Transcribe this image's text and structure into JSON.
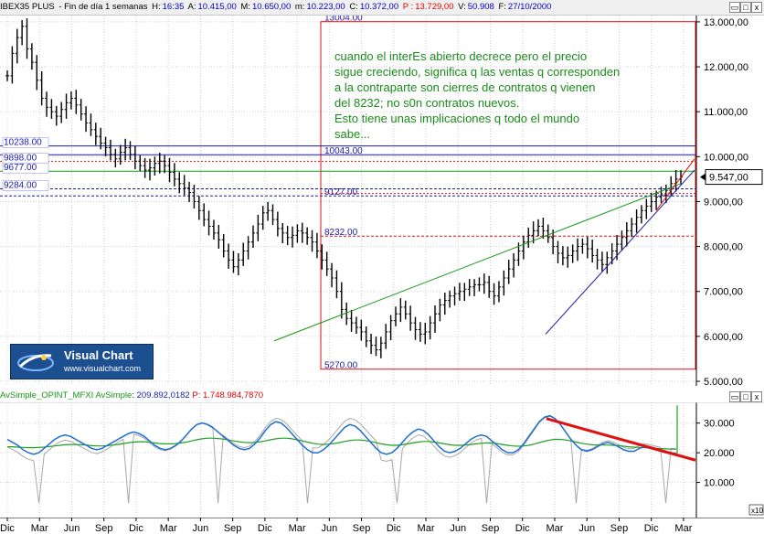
{
  "header": {
    "symbol": "IBEX35 PLUS",
    "desc": "- Fin de día 1 semanas",
    "H_label": "H:",
    "H_value": "16:35",
    "A_label": "A:",
    "A_value": "10.415,00",
    "M_label": "M:",
    "M_value": "10.650,00",
    "m_label": "m:",
    "m_value": "10.223,00",
    "C_label": "C:",
    "C_value": "10.372,00",
    "P_label": "P :",
    "P_value": "13.729,00",
    "V_label": "V:",
    "V_value": "50.908",
    "F_label": "F:",
    "F_value": "27/10/2000"
  },
  "window_buttons": {
    "close": "x",
    "maximize": "□",
    "restore": "▭"
  },
  "logo": {
    "title": "Visual Chart",
    "url": "www.visualchart.com"
  },
  "annotation": {
    "lines": [
      "cuando el interEs abierto decrece pero el precio",
      "sigue creciendo, significa q las ventas q corresponden",
      "a la contraparte son cierres de contratos q vienen",
      "del 8232; no s0n contratos nuevos.",
      "Esto tiene unas implicaciones q todo el mundo",
      "sabe..."
    ]
  },
  "colors": {
    "price_bars": "#000000",
    "red_lines": "#dd1111",
    "blue_lines": "#1a1aaa",
    "green_lines": "#169916",
    "annotation_text": "#1a8c1a",
    "indicator_fast": "#1e6fd0",
    "indicator_slow": "#1f9f1f",
    "indicator_raw": "#a8a8a8",
    "indicator_trend": "#e01010"
  },
  "chart_data": [
    {
      "type": "bar",
      "subtype": "ohlc",
      "x_ticks": [
        "Dic",
        "Mar",
        "Jun",
        "Sep",
        "Dic",
        "Mar",
        "Jun",
        "Sep",
        "Dic",
        "Mar",
        "Jun",
        "Sep",
        "Dic",
        "Mar",
        "Jun",
        "Sep",
        "Dic",
        "Mar",
        "Jun",
        "Sep",
        "Dic",
        "Mar"
      ],
      "y_ticks": [
        "5.000,00",
        "6.000,00",
        "7.000,00",
        "8.000,00",
        "9.000,00",
        "10.000,00",
        "11.000,00",
        "12.000,00",
        "13.000,00"
      ],
      "ylim": [
        5000,
        13100
      ],
      "last_price_label": "9.547,00",
      "close_series": [
        11800,
        12300,
        12650,
        12900,
        12400,
        12100,
        11700,
        11300,
        11100,
        11000,
        10900,
        11050,
        11200,
        11300,
        11150,
        10950,
        10750,
        10600,
        10450,
        10300,
        10200,
        10050,
        9950,
        10100,
        10200,
        10050,
        9900,
        9800,
        9700,
        9750,
        9850,
        9900,
        9800,
        9650,
        9500,
        9400,
        9300,
        9200,
        9000,
        8800,
        8600,
        8450,
        8300,
        8150,
        7900,
        7700,
        7550,
        7700,
        7900,
        8100,
        8300,
        8500,
        8750,
        8800,
        8600,
        8400,
        8300,
        8200,
        8250,
        8350,
        8300,
        8200,
        8100,
        7900,
        7700,
        7500,
        7300,
        7000,
        6600,
        6400,
        6300,
        6200,
        6100,
        5900,
        5800,
        5700,
        5850,
        6100,
        6350,
        6500,
        6650,
        6500,
        6300,
        6150,
        6050,
        6100,
        6300,
        6500,
        6700,
        6800,
        6900,
        6950,
        7000,
        7050,
        7100,
        7150,
        7150,
        7200,
        7000,
        6900,
        7100,
        7300,
        7500,
        7700,
        7900,
        8100,
        8250,
        8350,
        8450,
        8350,
        8200,
        8000,
        7850,
        7750,
        7800,
        7900,
        8000,
        8050,
        7950,
        7800,
        7700,
        7600,
        7750,
        7900,
        8050,
        8200,
        8350,
        8500,
        8650,
        8800,
        8900,
        9000,
        9100,
        9150,
        9250,
        9400,
        9500,
        9547
      ],
      "horizontal_levels": [
        {
          "value": 13004,
          "label": "13004.00"
        },
        {
          "value": 10238,
          "label": "10238.00"
        },
        {
          "value": 10043,
          "label": "10043.00"
        },
        {
          "value": 9898,
          "label": "9898.00"
        },
        {
          "value": 9677,
          "label": "9677.00"
        },
        {
          "value": 9284,
          "label": "9284.00"
        },
        {
          "value": 9127,
          "label": "9127.00"
        },
        {
          "value": 8232,
          "label": "8232.00"
        },
        {
          "value": 5270,
          "label": "5270.00"
        }
      ]
    },
    {
      "type": "line",
      "title": "AvSimple_OPINT_MFXI AvSimple",
      "value1": "209.892,0182",
      "value2_label": "P:",
      "value2": "1.748.984,7870",
      "y_ticks": [
        "10.000",
        "20.000",
        "30.000"
      ],
      "ylim": [
        0,
        37000
      ],
      "scale_note": "x10",
      "series": [
        {
          "values": [
            24500,
            23500,
            22500,
            21000,
            20000,
            19500,
            20000,
            21500,
            23000,
            24500,
            25500,
            26000,
            25500,
            24500,
            23500,
            22500,
            21500,
            21000,
            21500,
            22500,
            23500,
            24500,
            25500,
            26500,
            27000,
            26500,
            25500,
            24000,
            22500,
            21500,
            21000,
            21500,
            22500,
            24000,
            26000,
            28000,
            29500,
            30000,
            29500,
            28500,
            27000,
            25500,
            24000,
            22500,
            21500,
            21000,
            21500,
            23000,
            25000,
            27500,
            29500,
            30500,
            30000,
            28500,
            26500,
            24500,
            22500,
            21000,
            20000,
            20000,
            21000,
            22500,
            24500,
            26500,
            28500,
            29500,
            29000,
            27500,
            25500,
            23500,
            21500,
            20000,
            19500,
            20000,
            21500,
            23500,
            25500,
            27000,
            28000,
            27500,
            26000,
            24000,
            22000,
            20500,
            20000,
            20500,
            21500,
            23000,
            24500,
            25500,
            26000,
            25500,
            24000,
            22500,
            21000,
            20000,
            20000,
            21000,
            23000,
            25500,
            28000,
            30500,
            32000,
            32500,
            31500,
            29500,
            27000,
            24500,
            22500,
            21000,
            20500,
            21000,
            22000,
            23000,
            23500,
            23000,
            22000,
            21000,
            20500,
            20500,
            21500,
            22000,
            21500,
            21000,
            20500,
            20000,
            20000,
            19800
          ]
        },
        {
          "values": [
            22000,
            22000,
            21900,
            21800,
            21700,
            21700,
            21800,
            21900,
            22100,
            22300,
            22500,
            22700,
            22800,
            22800,
            22700,
            22600,
            22400,
            22300,
            22300,
            22400,
            22600,
            22800,
            23100,
            23400,
            23600,
            23700,
            23700,
            23500,
            23300,
            23100,
            23000,
            23000,
            23100,
            23300,
            23600,
            24000,
            24400,
            24700,
            24900,
            24900,
            24800,
            24600,
            24300,
            24000,
            23700,
            23500,
            23400,
            23500,
            23700,
            24000,
            24400,
            24700,
            24900,
            24900,
            24700,
            24400,
            24000,
            23600,
            23200,
            22900,
            22800,
            22900,
            23100,
            23400,
            23800,
            24100,
            24300,
            24300,
            24100,
            23800,
            23400,
            23000,
            22700,
            22500,
            22500,
            22700,
            23000,
            23300,
            23600,
            23800,
            23800,
            23600,
            23300,
            23000,
            22700,
            22500,
            22500,
            22600,
            22800,
            23000,
            23200,
            23300,
            23300,
            23100,
            22800,
            22500,
            22300,
            22200,
            22300,
            22500,
            22900,
            23400,
            23900,
            24300,
            24500,
            24500,
            24300,
            24000,
            23600,
            23200,
            22900,
            22700,
            22600,
            22600,
            22600,
            22500,
            22400,
            22200,
            22000,
            21900,
            21800,
            21700,
            21600,
            21500,
            21400,
            21300,
            21200,
            21200
          ]
        }
      ]
    }
  ],
  "x_axis_ticks": [
    "Dic",
    "Mar",
    "Jun",
    "Sep",
    "Dic",
    "Mar",
    "Jun",
    "Sep",
    "Dic",
    "Mar",
    "Jun",
    "Sep",
    "Dic",
    "Mar",
    "Jun",
    "Sep",
    "Dic",
    "Mar",
    "Jun",
    "Sep",
    "Dic",
    "Mar"
  ]
}
